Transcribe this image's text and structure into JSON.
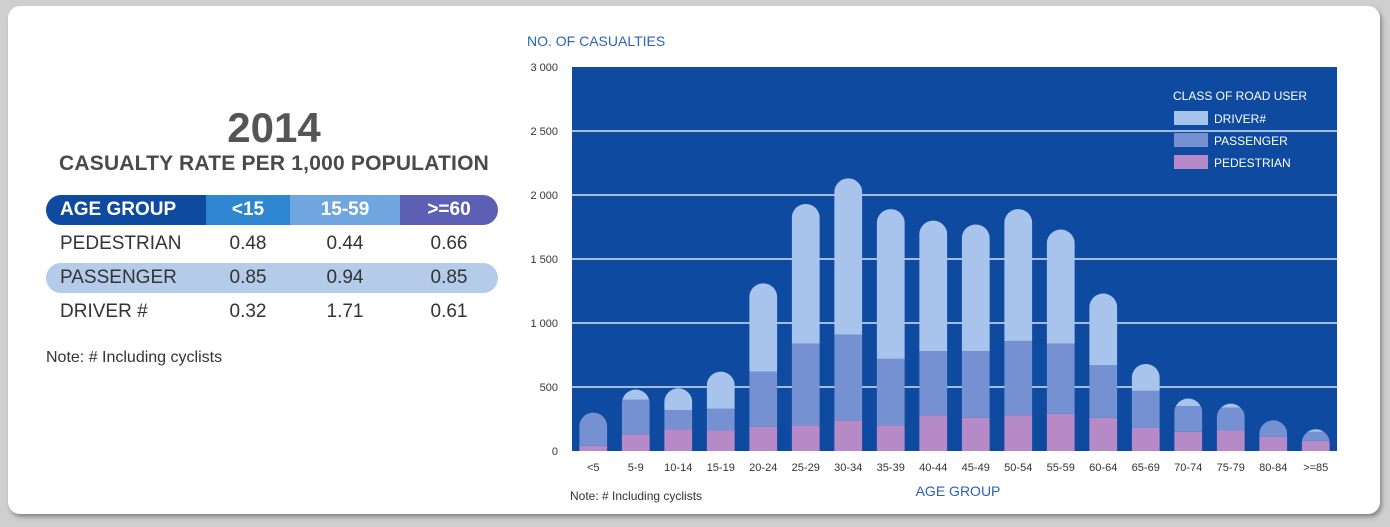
{
  "table": {
    "year": "2014",
    "title": "CASUALTY RATE PER 1,000 POPULATION",
    "headers": [
      "AGE GROUP",
      "<15",
      "15-59",
      ">=60"
    ],
    "rows": [
      {
        "label": "PEDESTRIAN",
        "values": [
          "0.48",
          "0.44",
          "0.66"
        ]
      },
      {
        "label": "PASSENGER",
        "values": [
          "0.85",
          "0.94",
          "0.85"
        ]
      },
      {
        "label": "DRIVER #",
        "values": [
          "0.32",
          "1.71",
          "0.61"
        ]
      }
    ],
    "note": "Note:  #  Including cyclists"
  },
  "colors": {
    "plot_bg": "#0d4aa0",
    "driver": "#a9c4ec",
    "passenger": "#7691d2",
    "pedestrian": "#b58ac6",
    "axis_text": "#333333",
    "label_blue": "#2a62b8"
  },
  "chart_data": {
    "type": "bar",
    "stacked": true,
    "ylabel": "NO. OF CASUALTIES",
    "xlabel": "AGE GROUP",
    "ylim": [
      0,
      3000
    ],
    "yticks": [
      0,
      500,
      1000,
      1500,
      2000,
      2500,
      3000
    ],
    "ytick_labels": [
      "0",
      "500",
      "1 000",
      "1 500",
      "2 000",
      "2 500",
      "3 000"
    ],
    "grid": true,
    "legend_title": "CLASS OF ROAD USER",
    "legend_position": "top-right",
    "note": "Note:  # Including cyclists",
    "categories": [
      "<5",
      "5-9",
      "10-14",
      "15-19",
      "20-24",
      "25-29",
      "30-34",
      "35-39",
      "40-44",
      "45-49",
      "50-54",
      "55-59",
      "60-64",
      "65-69",
      "70-74",
      "75-79",
      "80-84",
      ">=85"
    ],
    "series": [
      {
        "name": "PEDESTRIAN",
        "color": "#b58ac6",
        "values": [
          40,
          130,
          170,
          160,
          190,
          200,
          240,
          200,
          280,
          260,
          280,
          290,
          260,
          180,
          150,
          160,
          110,
          80
        ]
      },
      {
        "name": "PASSENGER",
        "color": "#7691d2",
        "values": [
          260,
          270,
          150,
          170,
          430,
          640,
          670,
          520,
          500,
          520,
          580,
          550,
          410,
          290,
          200,
          180,
          130,
          70
        ]
      },
      {
        "name": "DRIVER#",
        "color": "#a9c4ec",
        "values": [
          0,
          80,
          170,
          290,
          690,
          1090,
          1220,
          1170,
          1020,
          990,
          1030,
          890,
          560,
          210,
          60,
          30,
          0,
          20
        ]
      }
    ]
  }
}
